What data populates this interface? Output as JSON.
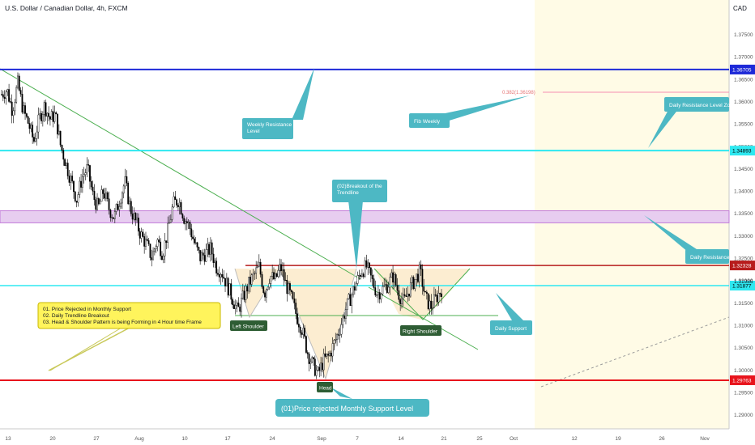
{
  "header": {
    "title": "U.S. Dollar / Canadian Dollar, 4h, FXCM"
  },
  "currency_label": "CAD",
  "colors": {
    "weekly_resistance": "#1e2ad8",
    "daily_support_cyan": "#2ee8f0",
    "daily_resistance_cyan": "#2ee8f0",
    "resistance_red": "#b71c1c",
    "monthly_support_red": "#e8141c",
    "zone_purple": "#c07ad8",
    "pattern_fill": "#fbe9c6",
    "callout_teal": "#4db8c4",
    "tag_green": "#2e5d34",
    "note_yellow": "#fff45c",
    "highlight_yellow": "#fffbe6",
    "candle_up": "#000000",
    "candle_down": "#000000"
  },
  "chart_data": {
    "type": "candlestick",
    "symbol": "USDCAD",
    "timeframe": "4h",
    "ylim": [
      1.2875,
      1.3815
    ],
    "y_ticks": [
      "1.37500",
      "1.37000",
      "1.36500",
      "1.36000",
      "1.35500",
      "1.35000",
      "1.34500",
      "1.34000",
      "1.33500",
      "1.33000",
      "1.32500",
      "1.32000",
      "1.31500",
      "1.31000",
      "1.30500",
      "1.30000",
      "1.29500",
      "1.29000"
    ],
    "x_ticks": [
      "13",
      "20",
      "27",
      "Aug",
      "10",
      "17",
      "24",
      "Sep",
      "7",
      "14",
      "21",
      "25",
      "Oct",
      "12",
      "19",
      "26",
      "Nov"
    ],
    "close_path": [
      1.3615,
      1.3625,
      1.358,
      1.364,
      1.358,
      1.355,
      1.351,
      1.356,
      1.359,
      1.356,
      1.357,
      1.35,
      1.346,
      1.342,
      1.338,
      1.343,
      1.345,
      1.339,
      1.336,
      1.34,
      1.336,
      1.334,
      1.338,
      1.342,
      1.336,
      1.333,
      1.33,
      1.328,
      1.325,
      1.329,
      1.326,
      1.331,
      1.337,
      1.338,
      1.334,
      1.332,
      1.328,
      1.325,
      1.326,
      1.327,
      1.323,
      1.322,
      1.319,
      1.316,
      1.313,
      1.316,
      1.319,
      1.321,
      1.323,
      1.317,
      1.321,
      1.32,
      1.323,
      1.319,
      1.316,
      1.312,
      1.309,
      1.304,
      1.301,
      1.299,
      1.302,
      1.303,
      1.306,
      1.309,
      1.313,
      1.316,
      1.319,
      1.322,
      1.323,
      1.32,
      1.317,
      1.318,
      1.319,
      1.321,
      1.317,
      1.315,
      1.318,
      1.32,
      1.322,
      1.316,
      1.314,
      1.316,
      1.318
    ],
    "levels": [
      {
        "name": "weekly_resistance",
        "price": 1.36705,
        "label": "1.36705"
      },
      {
        "name": "fib",
        "price": 1.36198,
        "label": "0.382(1.36198)"
      },
      {
        "name": "daily_resistance_zone",
        "price": 1.34893,
        "label": "1.34893"
      },
      {
        "name": "resistance_red",
        "price": 1.32328,
        "label": "1.32328"
      },
      {
        "name": "daily_support",
        "price": 1.31877,
        "label": "1.31877"
      },
      {
        "name": "monthly_support",
        "price": 1.29763,
        "label": "1.29763"
      }
    ],
    "last_price": "1.31986",
    "zone": {
      "top": 1.3355,
      "bottom": 1.3328
    }
  },
  "annotations": {
    "weekly_resistance": "Weekly Resistance\nLevel",
    "fib_weekly": "Fib Weekly",
    "daily_resistance_zone": "Daily Resistance Level Zone",
    "breakout": "(02)Breakout of the\nTrendline",
    "daily_resistance": "Daily Resistance",
    "daily_support": "Daily Support",
    "left_shoulder": "Left Shoulder",
    "right_shoulder": "Right Shoulder",
    "head": "Head",
    "monthly_support": "(01)Price rejected Monthly Support Level",
    "notes": [
      "01. Price Rejected in Monthly Support",
      "02. Daily Trendline Breakout",
      "03. Head & Shoulder Pattern is being Forming in 4 Hour time Frame"
    ]
  }
}
